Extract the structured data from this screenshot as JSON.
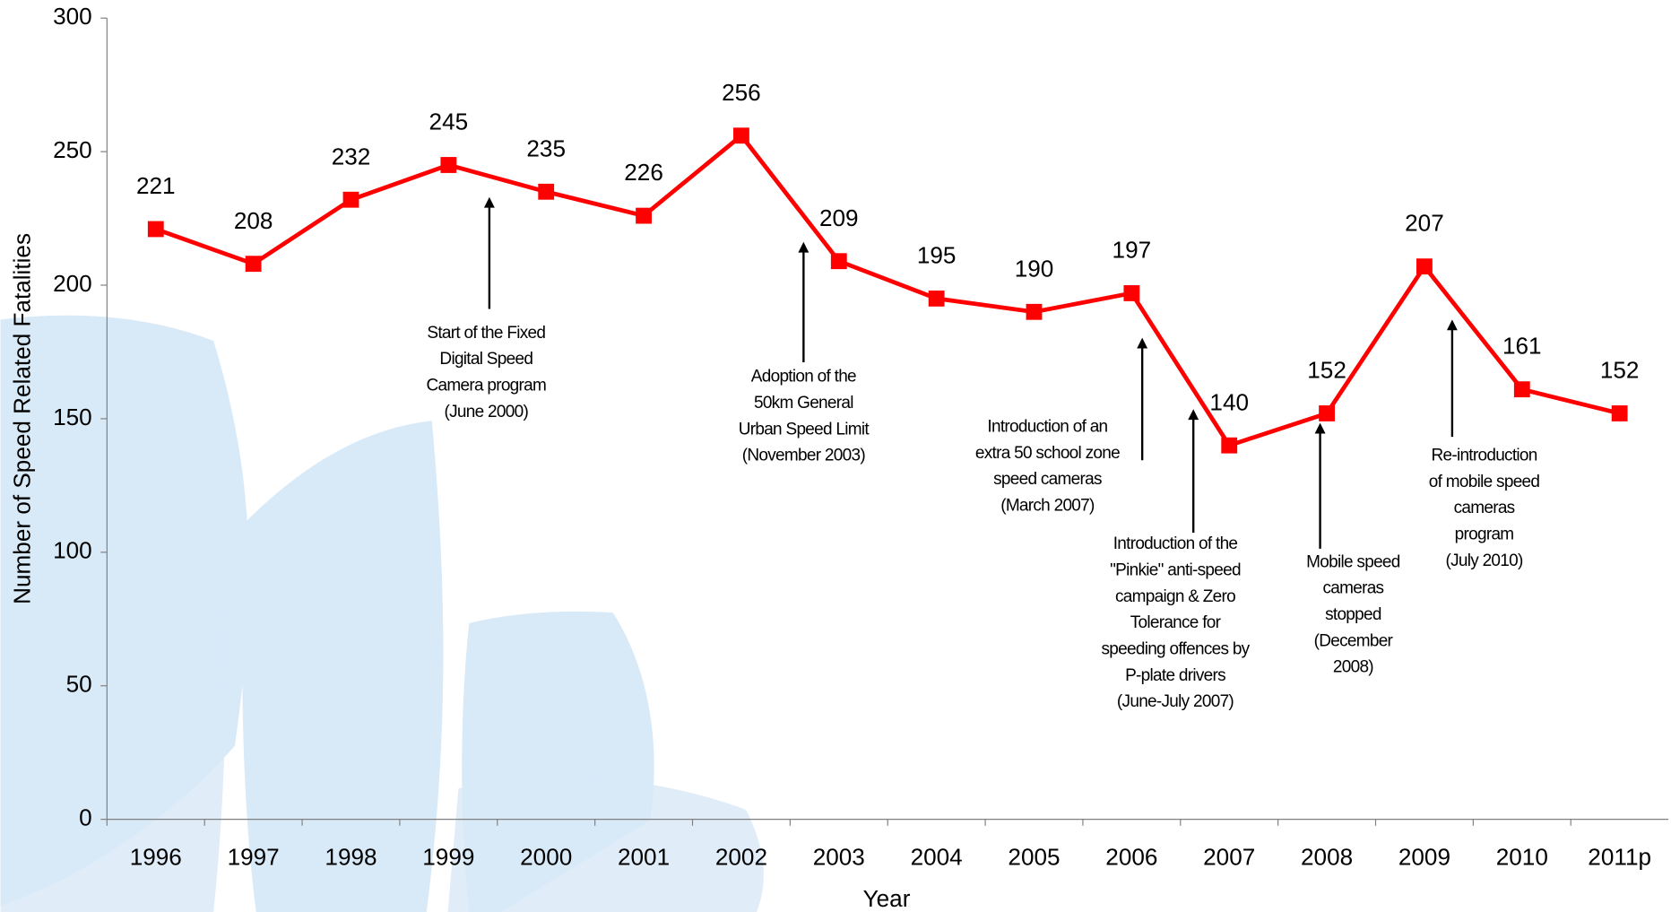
{
  "chart_data": {
    "type": "line",
    "x_label": "Year",
    "y_label": "Number of Speed Related Fatalities",
    "categories": [
      "1996",
      "1997",
      "1998",
      "1999",
      "2000",
      "2001",
      "2002",
      "2003",
      "2004",
      "2005",
      "2006",
      "2007",
      "2008",
      "2009",
      "2010",
      "2011p"
    ],
    "series": [
      {
        "color": "#ff0000",
        "values": [
          221,
          208,
          232,
          245,
          235,
          226,
          256,
          209,
          195,
          190,
          197,
          140,
          152,
          207,
          161,
          152
        ]
      }
    ],
    "ylim": [
      0,
      300
    ],
    "yticks": [
      0,
      50,
      100,
      150,
      200,
      250,
      300
    ],
    "annotations": [
      {
        "lines": [
          "Start of the Fixed",
          "Digital Speed",
          "Camera program",
          "(June 2000)"
        ]
      },
      {
        "lines": [
          "Adoption of the",
          "50km General",
          "Urban Speed Limit",
          "(November 2003)"
        ]
      },
      {
        "lines": [
          "Introduction of an",
          "extra 50 school zone",
          "speed cameras",
          "(March 2007)"
        ]
      },
      {
        "lines": [
          "Introduction of the",
          "\"Pinkie\" anti-speed",
          "campaign & Zero",
          "Tolerance for",
          "speeding offences by",
          "P-plate drivers",
          "(June-July 2007)"
        ]
      },
      {
        "lines": [
          "Mobile speed",
          "cameras",
          "stopped",
          "(December",
          "2008)"
        ]
      },
      {
        "lines": [
          "Re-introduction",
          "of mobile speed",
          "cameras",
          "program",
          "(July 2010)"
        ]
      }
    ]
  }
}
